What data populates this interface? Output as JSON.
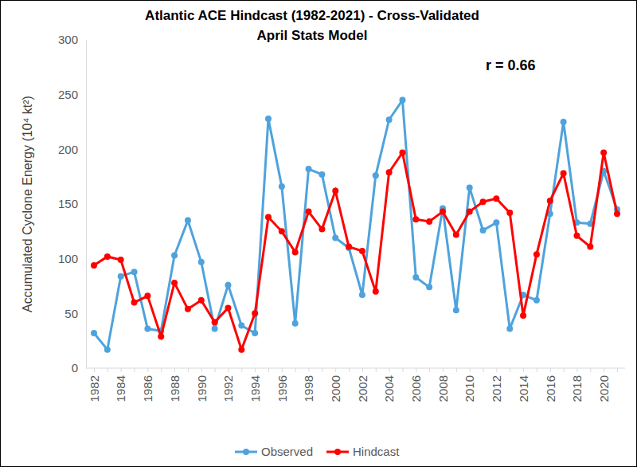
{
  "chart_data": {
    "type": "line",
    "title": "Atlantic ACE Hindcast (1982-2021) - Cross-Validated",
    "subtitle": "April Stats Model",
    "annotation": "r = 0.66",
    "y_label": "Accumulated Cyclone Energy (10⁴ kt²)",
    "categories": [
      "1982",
      null,
      "1984",
      null,
      "1986",
      null,
      "1988",
      null,
      "1990",
      null,
      "1992",
      null,
      "1994",
      null,
      "1996",
      null,
      "1998",
      null,
      "2000",
      null,
      "2002",
      null,
      "2004",
      null,
      "2006",
      null,
      "2008",
      null,
      "2010",
      null,
      "2012",
      null,
      "2014",
      null,
      "2016",
      null,
      "2018",
      null,
      "2020",
      null
    ],
    "series": [
      {
        "name": "Observed",
        "color": "#4ea3dc",
        "marker": "circle",
        "values": [
          32,
          17,
          84,
          88,
          36,
          34,
          103,
          135,
          97,
          36,
          76,
          39,
          32,
          228,
          166,
          41,
          182,
          177,
          119,
          110,
          67,
          176,
          227,
          245,
          83,
          74,
          146,
          53,
          165,
          126,
          133,
          36,
          67,
          62,
          141,
          225,
          133,
          132,
          180,
          145
        ]
      },
      {
        "name": "Hindcast",
        "color": "#ff0000",
        "marker": "circle",
        "values": [
          94,
          102,
          99,
          60,
          66,
          29,
          78,
          54,
          62,
          42,
          55,
          17,
          50,
          138,
          125,
          106,
          143,
          127,
          162,
          111,
          107,
          70,
          179,
          197,
          136,
          134,
          143,
          122,
          143,
          152,
          155,
          142,
          48,
          104,
          153,
          178,
          121,
          111,
          197,
          141
        ]
      }
    ],
    "ylim": [
      0,
      300
    ],
    "yticks": [
      0,
      50,
      100,
      150,
      200,
      250,
      300
    ],
    "grid": false,
    "legend": "bottom"
  }
}
